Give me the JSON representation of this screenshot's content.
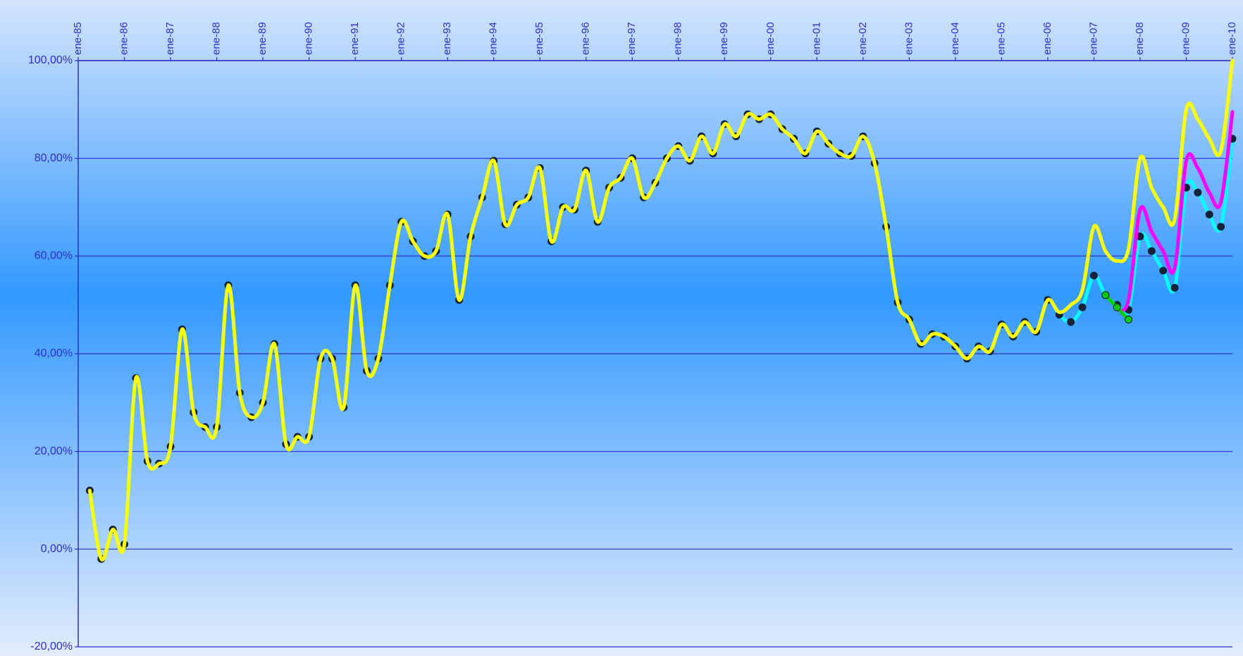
{
  "chart_data": {
    "type": "line",
    "smooth": true,
    "grid": true,
    "categories": [
      "ene-85",
      null,
      null,
      null,
      "ene-86",
      null,
      null,
      null,
      "ene-87",
      null,
      null,
      null,
      "ene-88",
      null,
      null,
      null,
      "ene-89",
      null,
      null,
      null,
      "ene-90",
      null,
      null,
      null,
      "ene-91",
      null,
      null,
      null,
      "ene-92",
      null,
      null,
      null,
      "ene-93",
      null,
      null,
      null,
      "ene-94",
      null,
      null,
      null,
      "ene-95",
      null,
      null,
      null,
      "ene-96",
      null,
      null,
      null,
      "ene-97",
      null,
      null,
      null,
      "ene-98",
      null,
      null,
      null,
      "ene-99",
      null,
      null,
      null,
      "ene-00",
      null,
      null,
      null,
      "ene-01",
      null,
      null,
      null,
      "ene-02",
      null,
      null,
      null,
      "ene-03",
      null,
      null,
      null,
      "ene-04",
      null,
      null,
      null,
      "ene-05",
      null,
      null,
      null,
      "ene-06",
      null,
      null,
      null,
      "ene-07",
      null,
      null,
      null,
      "ene-08",
      null,
      null,
      null,
      "ene-09",
      null,
      null,
      null,
      "ene-10"
    ],
    "ylim": [
      -20,
      100
    ],
    "yticks": [
      {
        "value": -20,
        "label": "-20,00%"
      },
      {
        "value": 0,
        "label": "0,00%"
      },
      {
        "value": 20,
        "label": "20,00%"
      },
      {
        "value": 40,
        "label": "40,00%"
      },
      {
        "value": 60,
        "label": "60,00%"
      },
      {
        "value": 80,
        "label": "80,00%"
      },
      {
        "value": 100,
        "label": "100,00%"
      }
    ],
    "series": [
      {
        "color": "#00ffff",
        "markers": true,
        "marker_color": "#14233a",
        "values": [
          null,
          12,
          -2,
          4,
          1,
          35,
          18,
          17.5,
          21,
          45,
          28,
          25,
          25,
          54,
          32,
          27,
          30,
          42,
          21.5,
          23,
          23,
          39,
          39,
          29,
          54,
          36.5,
          39,
          54,
          67,
          63,
          60,
          61,
          68.5,
          51,
          64,
          72,
          79.5,
          66.5,
          70.5,
          72,
          78,
          63,
          70,
          69.5,
          77.5,
          67,
          74,
          76,
          80,
          72,
          75,
          80,
          82.5,
          79.5,
          84.5,
          81,
          87,
          84.5,
          89,
          88,
          89,
          86,
          84,
          81,
          85.5,
          83,
          81,
          80.5,
          84.5,
          79,
          66,
          50.5,
          47,
          42,
          44,
          43.5,
          41.5,
          39,
          41.5,
          40.5,
          46,
          43.5,
          46.5,
          44.5,
          51,
          48,
          46.5,
          49.5,
          56,
          52,
          50,
          49,
          64,
          61,
          57,
          53.5,
          74,
          73,
          68.5,
          66,
          84
        ]
      },
      {
        "color": "#ff00ff",
        "markers": false,
        "values": [
          null,
          null,
          null,
          null,
          null,
          null,
          null,
          null,
          null,
          null,
          null,
          null,
          null,
          null,
          null,
          null,
          null,
          null,
          null,
          null,
          null,
          null,
          null,
          null,
          null,
          null,
          null,
          null,
          null,
          null,
          null,
          null,
          null,
          null,
          null,
          null,
          null,
          null,
          null,
          null,
          null,
          null,
          null,
          null,
          null,
          null,
          null,
          null,
          null,
          null,
          null,
          null,
          null,
          null,
          null,
          null,
          null,
          null,
          null,
          null,
          null,
          null,
          null,
          null,
          null,
          null,
          null,
          null,
          null,
          null,
          null,
          null,
          null,
          null,
          null,
          null,
          null,
          null,
          null,
          null,
          null,
          null,
          null,
          null,
          null,
          null,
          null,
          null,
          null,
          null,
          49,
          51,
          69.5,
          65,
          61,
          57.5,
          79.5,
          78,
          73,
          71,
          89.5
        ]
      },
      {
        "color": "#00cc00",
        "markers": true,
        "marker_color": "#00cc00",
        "values": [
          null,
          null,
          null,
          null,
          null,
          null,
          null,
          null,
          null,
          null,
          null,
          null,
          null,
          null,
          null,
          null,
          null,
          null,
          null,
          null,
          null,
          null,
          null,
          null,
          null,
          null,
          null,
          null,
          null,
          null,
          null,
          null,
          null,
          null,
          null,
          null,
          null,
          null,
          null,
          null,
          null,
          null,
          null,
          null,
          null,
          null,
          null,
          null,
          null,
          null,
          null,
          null,
          null,
          null,
          null,
          null,
          null,
          null,
          null,
          null,
          null,
          null,
          null,
          null,
          null,
          null,
          null,
          null,
          null,
          null,
          null,
          null,
          null,
          null,
          null,
          null,
          null,
          null,
          null,
          null,
          null,
          null,
          null,
          null,
          null,
          null,
          null,
          null,
          null,
          52,
          49.5,
          47,
          null,
          null,
          null,
          null,
          null,
          null,
          null,
          null,
          null
        ]
      },
      {
        "color": "#ffff00",
        "markers": false,
        "values": [
          null,
          12,
          -2,
          4,
          1,
          35,
          18,
          17.5,
          21,
          45,
          28,
          25,
          25,
          54,
          32,
          27,
          30,
          42,
          21.5,
          23,
          23,
          39,
          39,
          29,
          54,
          36.5,
          39,
          54,
          67,
          63,
          60,
          61,
          68.5,
          51,
          64,
          72,
          79.5,
          66.5,
          70.5,
          72,
          78,
          63,
          70,
          69.5,
          77.5,
          67,
          74,
          76,
          80,
          72,
          75,
          80,
          82.5,
          79.5,
          84.5,
          81,
          87,
          84.5,
          89,
          88,
          89,
          86,
          84,
          81,
          85.5,
          83,
          81,
          80.5,
          84.5,
          79,
          66,
          50.5,
          47,
          42,
          44,
          43.5,
          41.5,
          39,
          41.5,
          40.5,
          46,
          43.5,
          46.5,
          44.5,
          51,
          48.5,
          50,
          53,
          66,
          61,
          59,
          61.5,
          80,
          74,
          70,
          67.5,
          90,
          88,
          84,
          81.5,
          100
        ]
      }
    ]
  }
}
